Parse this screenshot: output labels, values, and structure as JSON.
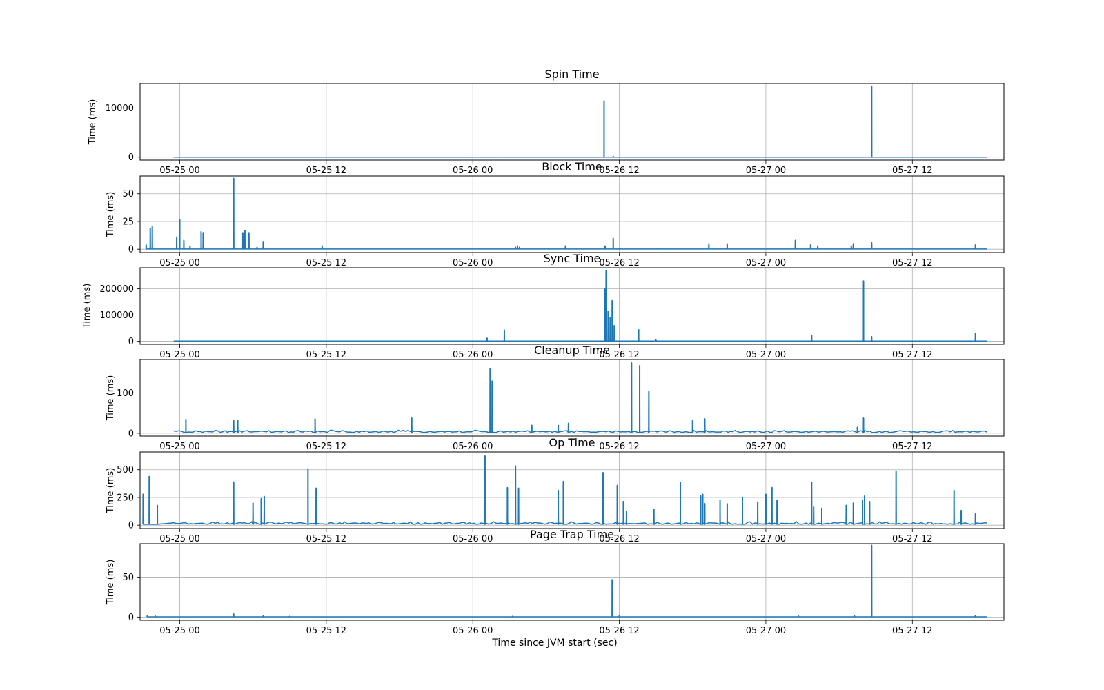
{
  "xlabel": "Time since JVM start (sec)",
  "line_color": "#1f77b4",
  "x_ticks": [
    "05-25 00",
    "05-25 12",
    "05-26 00",
    "05-26 12",
    "05-27 00",
    "05-27 12"
  ],
  "chart_data": [
    {
      "type": "line",
      "title": "Spin Time",
      "ylabel": "Time (ms)",
      "xlim": [
        "2024-05-24 20:45",
        "2024-05-27 19:30"
      ],
      "ylim": [
        -600,
        15000
      ],
      "y_ticks": [
        0,
        10000
      ],
      "grid": true,
      "baseline": 10,
      "noise": 0,
      "spikes": [
        [
          "2024-05-26 02:00",
          40
        ],
        [
          "2024-05-26 10:45",
          11500
        ],
        [
          "2024-05-26 11:30",
          200
        ],
        [
          "2024-05-27 08:40",
          14500
        ]
      ]
    },
    {
      "type": "line",
      "title": "Block Time",
      "ylabel": "Time (ms)",
      "xlim": [
        "2024-05-24 20:45",
        "2024-05-27 19:30"
      ],
      "ylim": [
        -3,
        66
      ],
      "y_ticks": [
        0,
        25,
        50
      ],
      "grid": true,
      "baseline": 0.2,
      "noise": 0,
      "spikes": [
        [
          "2024-05-24 21:15",
          4
        ],
        [
          "2024-05-24 21:35",
          19
        ],
        [
          "2024-05-24 21:45",
          21
        ],
        [
          "2024-05-24 23:45",
          11
        ],
        [
          "2024-05-25 00:00",
          27
        ],
        [
          "2024-05-25 00:20",
          8
        ],
        [
          "2024-05-25 00:50",
          3
        ],
        [
          "2024-05-25 01:45",
          16
        ],
        [
          "2024-05-25 01:55",
          15
        ],
        [
          "2024-05-25 04:25",
          64
        ],
        [
          "2024-05-25 05:10",
          15
        ],
        [
          "2024-05-25 05:20",
          17
        ],
        [
          "2024-05-25 05:40",
          15
        ],
        [
          "2024-05-25 06:20",
          2
        ],
        [
          "2024-05-25 06:50",
          7
        ],
        [
          "2024-05-25 11:40",
          3
        ],
        [
          "2024-05-26 03:30",
          2
        ],
        [
          "2024-05-26 03:40",
          3
        ],
        [
          "2024-05-26 03:50",
          2
        ],
        [
          "2024-05-26 07:35",
          3
        ],
        [
          "2024-05-26 10:50",
          3
        ],
        [
          "2024-05-26 11:30",
          10
        ],
        [
          "2024-05-26 12:00",
          1
        ],
        [
          "2024-05-26 15:10",
          1
        ],
        [
          "2024-05-26 19:20",
          5
        ],
        [
          "2024-05-26 20:50",
          5
        ],
        [
          "2024-05-27 02:25",
          8
        ],
        [
          "2024-05-27 03:40",
          4
        ],
        [
          "2024-05-27 04:15",
          3
        ],
        [
          "2024-05-27 07:00",
          3
        ],
        [
          "2024-05-27 07:10",
          5
        ],
        [
          "2024-05-27 08:40",
          6
        ],
        [
          "2024-05-27 17:10",
          4
        ]
      ]
    },
    {
      "type": "line",
      "title": "Sync Time",
      "ylabel": "Time (ms)",
      "xlim": [
        "2024-05-24 20:45",
        "2024-05-27 19:30"
      ],
      "ylim": [
        -12000,
        280000
      ],
      "y_ticks": [
        0,
        100000,
        200000
      ],
      "grid": true,
      "baseline": 300,
      "noise": 0,
      "spikes": [
        [
          "2024-05-26 01:10",
          12000
        ],
        [
          "2024-05-26 02:35",
          43000
        ],
        [
          "2024-05-26 10:50",
          200000
        ],
        [
          "2024-05-26 10:55",
          268000
        ],
        [
          "2024-05-26 11:05",
          115000
        ],
        [
          "2024-05-26 11:15",
          90000
        ],
        [
          "2024-05-26 11:25",
          155000
        ],
        [
          "2024-05-26 11:35",
          60000
        ],
        [
          "2024-05-26 13:35",
          44000
        ],
        [
          "2024-05-26 15:00",
          5000
        ],
        [
          "2024-05-27 03:45",
          22000
        ],
        [
          "2024-05-27 08:00",
          230000
        ],
        [
          "2024-05-27 08:40",
          18000
        ],
        [
          "2024-05-27 17:10",
          30000
        ]
      ]
    },
    {
      "type": "line",
      "title": "Cleanup Time",
      "ylabel": "Time (ms)",
      "xlim": [
        "2024-05-24 20:45",
        "2024-05-27 19:30"
      ],
      "ylim": [
        -7,
        183
      ],
      "y_ticks": [
        0,
        100
      ],
      "grid": true,
      "baseline": 2,
      "noise": 6,
      "spikes": [
        [
          "2024-05-25 00:30",
          35
        ],
        [
          "2024-05-25 04:25",
          32
        ],
        [
          "2024-05-25 04:45",
          33
        ],
        [
          "2024-05-25 11:05",
          36
        ],
        [
          "2024-05-25 19:00",
          38
        ],
        [
          "2024-05-26 01:25",
          160
        ],
        [
          "2024-05-26 01:35",
          130
        ],
        [
          "2024-05-26 04:50",
          20
        ],
        [
          "2024-05-26 07:00",
          20
        ],
        [
          "2024-05-26 07:50",
          25
        ],
        [
          "2024-05-26 13:00",
          175
        ],
        [
          "2024-05-26 13:40",
          168
        ],
        [
          "2024-05-26 14:25",
          105
        ],
        [
          "2024-05-26 18:00",
          33
        ],
        [
          "2024-05-26 19:00",
          36
        ],
        [
          "2024-05-27 08:00",
          38
        ],
        [
          "2024-05-27 07:30",
          15
        ]
      ]
    },
    {
      "type": "line",
      "title": "Op Time",
      "ylabel": "Time (ms)",
      "xlim": [
        "2024-05-24 20:45",
        "2024-05-27 19:30"
      ],
      "ylim": [
        -30,
        660
      ],
      "y_ticks": [
        0,
        250,
        500
      ],
      "grid": true,
      "baseline": 8,
      "noise": 25,
      "spikes": [
        [
          "2024-05-24 21:00",
          280
        ],
        [
          "2024-05-24 21:30",
          440
        ],
        [
          "2024-05-24 22:10",
          180
        ],
        [
          "2024-05-25 04:25",
          390
        ],
        [
          "2024-05-25 06:00",
          200
        ],
        [
          "2024-05-25 06:40",
          240
        ],
        [
          "2024-05-25 06:55",
          260
        ],
        [
          "2024-05-25 10:30",
          510
        ],
        [
          "2024-05-25 11:10",
          335
        ],
        [
          "2024-05-26 01:00",
          625
        ],
        [
          "2024-05-26 02:50",
          340
        ],
        [
          "2024-05-26 03:30",
          535
        ],
        [
          "2024-05-26 03:45",
          335
        ],
        [
          "2024-05-26 07:00",
          315
        ],
        [
          "2024-05-26 07:25",
          395
        ],
        [
          "2024-05-26 10:40",
          475
        ],
        [
          "2024-05-26 11:50",
          360
        ],
        [
          "2024-05-26 12:20",
          215
        ],
        [
          "2024-05-26 12:35",
          125
        ],
        [
          "2024-05-26 14:50",
          145
        ],
        [
          "2024-05-26 17:00",
          385
        ],
        [
          "2024-05-26 18:40",
          265
        ],
        [
          "2024-05-26 18:50",
          280
        ],
        [
          "2024-05-26 19:00",
          195
        ],
        [
          "2024-05-26 20:15",
          225
        ],
        [
          "2024-05-26 20:50",
          195
        ],
        [
          "2024-05-26 22:05",
          250
        ],
        [
          "2024-05-26 23:20",
          210
        ],
        [
          "2024-05-27 00:00",
          280
        ],
        [
          "2024-05-27 00:30",
          340
        ],
        [
          "2024-05-27 00:55",
          225
        ],
        [
          "2024-05-27 03:45",
          385
        ],
        [
          "2024-05-27 03:55",
          165
        ],
        [
          "2024-05-27 04:35",
          155
        ],
        [
          "2024-05-27 06:35",
          180
        ],
        [
          "2024-05-27 07:10",
          200
        ],
        [
          "2024-05-27 07:55",
          230
        ],
        [
          "2024-05-27 08:05",
          265
        ],
        [
          "2024-05-27 08:30",
          215
        ],
        [
          "2024-05-27 10:40",
          490
        ],
        [
          "2024-05-27 15:25",
          315
        ],
        [
          "2024-05-27 16:00",
          135
        ],
        [
          "2024-05-27 17:10",
          105
        ]
      ]
    },
    {
      "type": "line",
      "title": "Page Trap Time",
      "ylabel": "Time (ms)",
      "xlim": [
        "2024-05-24 20:45",
        "2024-05-27 19:30"
      ],
      "ylim": [
        -4,
        92
      ],
      "y_ticks": [
        0,
        50
      ],
      "grid": true,
      "baseline": 0.3,
      "noise": 0,
      "spikes": [
        [
          "2024-05-24 21:20",
          1.5
        ],
        [
          "2024-05-24 22:00",
          1.5
        ],
        [
          "2024-05-25 04:25",
          4
        ],
        [
          "2024-05-25 06:50",
          1.5
        ],
        [
          "2024-05-25 09:00",
          1
        ],
        [
          "2024-05-26 03:15",
          1
        ],
        [
          "2024-05-26 11:25",
          47
        ],
        [
          "2024-05-26 12:00",
          2
        ],
        [
          "2024-05-27 02:40",
          1.5
        ],
        [
          "2024-05-27 07:15",
          2
        ],
        [
          "2024-05-27 08:40",
          90
        ],
        [
          "2024-05-27 17:10",
          2
        ]
      ]
    }
  ]
}
